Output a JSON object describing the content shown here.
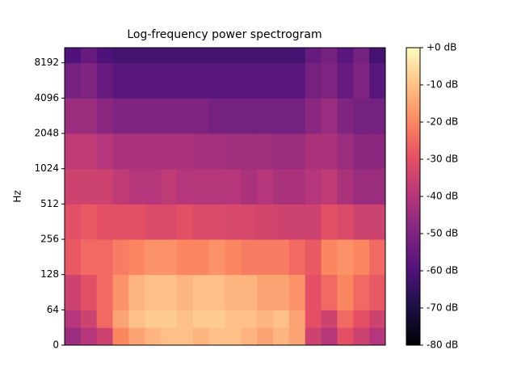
{
  "chart_data": {
    "type": "heatmap",
    "title": "Log-frequency power spectrogram",
    "ylabel": "Hz",
    "yscale": "symlog",
    "colormap": "magma",
    "ylim": [
      0,
      11025
    ],
    "yticks": [
      0,
      64,
      128,
      256,
      512,
      1024,
      2048,
      4096,
      8192
    ],
    "ybins": [
      0,
      32,
      64,
      128,
      256,
      512,
      1024,
      2048,
      4096,
      8192,
      11025
    ],
    "clim": [
      -80,
      0
    ],
    "colorbar_ticks": [
      {
        "value": 0,
        "label": "+0 dB"
      },
      {
        "value": -10,
        "label": "-10 dB"
      },
      {
        "value": -20,
        "label": "-20 dB"
      },
      {
        "value": -30,
        "label": "-30 dB"
      },
      {
        "value": -40,
        "label": "-40 dB"
      },
      {
        "value": -50,
        "label": "-50 dB"
      },
      {
        "value": -60,
        "label": "-60 dB"
      },
      {
        "value": -70,
        "label": "-70 dB"
      },
      {
        "value": -80,
        "label": "-80 dB"
      }
    ],
    "values": [
      [
        -45,
        -40,
        -35,
        -20,
        -15,
        -12,
        -10,
        -10,
        -12,
        -10,
        -10,
        -12,
        -15,
        -12,
        -15,
        -35,
        -40,
        -30,
        -35,
        -40
      ],
      [
        -40,
        -35,
        -25,
        -15,
        -10,
        -8,
        -8,
        -10,
        -8,
        -8,
        -10,
        -10,
        -12,
        -10,
        -15,
        -30,
        -35,
        -25,
        -30,
        -35
      ],
      [
        -35,
        -30,
        -25,
        -18,
        -12,
        -10,
        -10,
        -12,
        -10,
        -10,
        -12,
        -12,
        -15,
        -15,
        -18,
        -30,
        -25,
        -20,
        -25,
        -28
      ],
      [
        -28,
        -25,
        -25,
        -22,
        -20,
        -18,
        -18,
        -20,
        -20,
        -18,
        -20,
        -22,
        -22,
        -22,
        -25,
        -28,
        -20,
        -18,
        -20,
        -25
      ],
      [
        -30,
        -28,
        -30,
        -30,
        -30,
        -32,
        -32,
        -30,
        -32,
        -32,
        -33,
        -33,
        -34,
        -35,
        -35,
        -35,
        -30,
        -32,
        -35,
        -35
      ],
      [
        -35,
        -35,
        -35,
        -38,
        -40,
        -40,
        -38,
        -40,
        -40,
        -40,
        -40,
        -42,
        -40,
        -42,
        -42,
        -40,
        -38,
        -42,
        -45,
        -45
      ],
      [
        -38,
        -38,
        -40,
        -42,
        -42,
        -42,
        -42,
        -42,
        -43,
        -43,
        -44,
        -44,
        -44,
        -45,
        -45,
        -42,
        -42,
        -45,
        -48,
        -48
      ],
      [
        -45,
        -45,
        -48,
        -50,
        -50,
        -50,
        -50,
        -50,
        -50,
        -52,
        -52,
        -52,
        -52,
        -52,
        -52,
        -48,
        -45,
        -50,
        -52,
        -52
      ],
      [
        -52,
        -50,
        -55,
        -58,
        -58,
        -58,
        -58,
        -58,
        -58,
        -58,
        -58,
        -58,
        -58,
        -58,
        -58,
        -52,
        -50,
        -55,
        -50,
        -58
      ],
      [
        -60,
        -55,
        -60,
        -62,
        -62,
        -62,
        -62,
        -62,
        -62,
        -62,
        -62,
        -62,
        -62,
        -62,
        -62,
        -55,
        -52,
        -58,
        -52,
        -62
      ]
    ]
  }
}
